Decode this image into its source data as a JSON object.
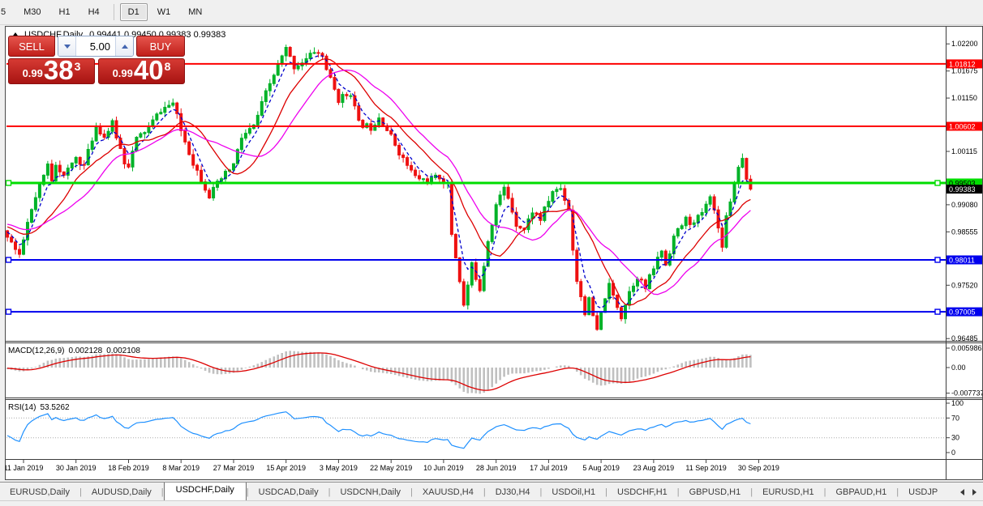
{
  "toolbar": {
    "timeframes": [
      "5",
      "M30",
      "H1",
      "H4",
      "D1",
      "W1",
      "MN"
    ],
    "active_timeframe": "D1"
  },
  "chart": {
    "title": "USDCHF,Daily",
    "ohlc_text": "0.99441 0.99450 0.99383 0.99383"
  },
  "trade_panel": {
    "sell_label": "SELL",
    "buy_label": "BUY",
    "volume": "5.00",
    "sell_quote": {
      "prefix": "0.99",
      "big": "38",
      "sup": "3"
    },
    "buy_quote": {
      "prefix": "0.99",
      "big": "40",
      "sup": "8"
    }
  },
  "indicators": {
    "macd": {
      "label": "MACD(12,26,9)",
      "main_value": "0.002128",
      "signal_value": "0.002108",
      "axis_labels": [
        "0.005986",
        "0.00",
        "-0.007737"
      ]
    },
    "rsi": {
      "label": "RSI(14)",
      "value": "53.5262",
      "axis_labels": [
        "100",
        "70",
        "30",
        "0"
      ]
    }
  },
  "price_axis": {
    "ticks": [
      "1.02200",
      "1.01675",
      "1.01150",
      "1.00115",
      "0.99080",
      "0.98555",
      "0.97520",
      "0.96485"
    ],
    "badges": [
      {
        "label": "1.01812",
        "bg": "#fe0000",
        "fg": "#ffffff"
      },
      {
        "label": "1.00602",
        "bg": "#fe0000",
        "fg": "#ffffff"
      },
      {
        "label": "0.99503",
        "bg": "#00dd00",
        "fg": "#000000"
      },
      {
        "label": "0.99383",
        "bg": "#000000",
        "fg": "#ffffff"
      },
      {
        "label": "0.98011",
        "bg": "#0000ee",
        "fg": "#ffffff"
      },
      {
        "label": "0.97005",
        "bg": "#0000ee",
        "fg": "#ffffff"
      }
    ]
  },
  "time_axis": {
    "labels": [
      "11 Jan 2019",
      "30 Jan 2019",
      "18 Feb 2019",
      "8 Mar 2019",
      "27 Mar 2019",
      "15 Apr 2019",
      "3 May 2019",
      "22 May 2019",
      "10 Jun 2019",
      "28 Jun 2019",
      "17 Jul 2019",
      "5 Aug 2019",
      "23 Aug 2019",
      "11 Sep 2019",
      "30 Sep 2019"
    ]
  },
  "tabs": {
    "items": [
      "EURUSD,Daily",
      "AUDUSD,Daily",
      "USDCHF,Daily",
      "USDCAD,Daily",
      "USDCNH,Daily",
      "XAUUSD,H4",
      "DJ30,H4",
      "USDOil,H1",
      "USDCHF,H1",
      "GBPUSD,H1",
      "EURUSD,H1",
      "GBPAUD,H1",
      "USDJP"
    ],
    "active": "USDCHF,Daily"
  },
  "chart_data": {
    "type": "candlestick",
    "symbol": "USDCHF",
    "period": "Daily",
    "current_bar": {
      "open": 0.99441,
      "high": 0.9945,
      "low": 0.99383,
      "close": 0.99383
    },
    "quotes": {
      "sell": 0.99383,
      "buy": 0.99408
    },
    "y_range": [
      0.9646,
      1.0242
    ],
    "x_label_step_days": 13,
    "horizontal_lines": [
      {
        "price": 1.01812,
        "color": "#fe0000",
        "width": 2,
        "handles": false
      },
      {
        "price": 1.00602,
        "color": "#fe0000",
        "width": 2,
        "handles": false
      },
      {
        "price": 0.99503,
        "color": "#00dd00",
        "width": 3,
        "handles": true
      },
      {
        "price": 0.98011,
        "color": "#0000ee",
        "width": 2,
        "handles": true
      },
      {
        "price": 0.97005,
        "color": "#0000ee",
        "width": 2,
        "handles": true
      }
    ],
    "moving_averages": [
      {
        "name": "fast",
        "period": 5,
        "color": "#0000cc",
        "style": "dashed"
      },
      {
        "name": "mid",
        "period": 13,
        "color": "#dd0000",
        "style": "solid"
      },
      {
        "name": "slow",
        "period": 21,
        "color": "#ee00ee",
        "style": "solid"
      }
    ],
    "macd": {
      "fast": 12,
      "slow": 26,
      "signal": 9,
      "current_main": 0.002128,
      "current_signal": 0.002108,
      "axis_max": 0.005986,
      "axis_min": -0.007737,
      "histogram_color": "#c0c0c0",
      "signal_color": "#dd0000"
    },
    "rsi": {
      "period": 14,
      "current": 53.5262,
      "levels": [
        70,
        30
      ],
      "color": "#1e90ff"
    },
    "bull_color": "#00b228",
    "bear_color": "#ee1111",
    "price_path_daily_close_estimates": [
      [
        -34,
        0.9868
      ],
      [
        -20,
        0.988
      ],
      [
        -10,
        0.9866
      ],
      [
        -4,
        0.985
      ],
      [
        -1,
        0.9806
      ],
      [
        1,
        0.9872
      ],
      [
        3,
        0.992
      ],
      [
        6,
        0.9985
      ],
      [
        7,
        0.9958
      ],
      [
        8,
        0.999
      ],
      [
        10,
        0.9962
      ],
      [
        13,
        1.0
      ],
      [
        15,
        0.9984
      ],
      [
        18,
        1.0062
      ],
      [
        20,
        1.004
      ],
      [
        22,
        1.0065
      ],
      [
        25,
        0.9992
      ],
      [
        26,
        0.9986
      ],
      [
        28,
        1.0035
      ],
      [
        31,
        1.0058
      ],
      [
        34,
        1.0092
      ],
      [
        37,
        1.0105
      ],
      [
        39,
        1.0052
      ],
      [
        42,
        0.999
      ],
      [
        46,
        0.9926
      ],
      [
        49,
        0.9958
      ],
      [
        52,
        0.9986
      ],
      [
        54,
        1.0038
      ],
      [
        57,
        1.006
      ],
      [
        60,
        1.0124
      ],
      [
        63,
        1.0178
      ],
      [
        65,
        1.021
      ],
      [
        67,
        1.0176
      ],
      [
        70,
        1.019
      ],
      [
        72,
        1.0206
      ],
      [
        74,
        1.0196
      ],
      [
        76,
        1.015
      ],
      [
        78,
        1.0112
      ],
      [
        81,
        1.0126
      ],
      [
        83,
        1.0066
      ],
      [
        86,
        1.0058
      ],
      [
        88,
        1.008
      ],
      [
        91,
        1.004
      ],
      [
        94,
        0.9996
      ],
      [
        97,
        0.9962
      ],
      [
        100,
        0.9954
      ],
      [
        103,
        0.9962
      ],
      [
        105,
        0.9946
      ],
      [
        106,
        0.9852
      ],
      [
        108,
        0.9762
      ],
      [
        109,
        0.9712
      ],
      [
        110,
        0.9752
      ],
      [
        111,
        0.979
      ],
      [
        113,
        0.9746
      ],
      [
        115,
        0.984
      ],
      [
        117,
        0.9908
      ],
      [
        119,
        0.994
      ],
      [
        120,
        0.9922
      ],
      [
        122,
        0.9872
      ],
      [
        124,
        0.986
      ],
      [
        126,
        0.9896
      ],
      [
        128,
        0.988
      ],
      [
        131,
        0.9934
      ],
      [
        133,
        0.994
      ],
      [
        135,
        0.99
      ],
      [
        136,
        0.9822
      ],
      [
        137,
        0.9762
      ],
      [
        139,
        0.97
      ],
      [
        140,
        0.9722
      ],
      [
        142,
        0.9662
      ],
      [
        144,
        0.973
      ],
      [
        145,
        0.975
      ],
      [
        147,
        0.9712
      ],
      [
        148,
        0.9692
      ],
      [
        150,
        0.974
      ],
      [
        152,
        0.977
      ],
      [
        154,
        0.9746
      ],
      [
        156,
        0.9786
      ],
      [
        158,
        0.982
      ],
      [
        159,
        0.9792
      ],
      [
        161,
        0.9846
      ],
      [
        164,
        0.988
      ],
      [
        166,
        0.987
      ],
      [
        169,
        0.9906
      ],
      [
        170,
        0.993
      ],
      [
        172,
        0.9862
      ],
      [
        173,
        0.9832
      ],
      [
        174,
        0.9886
      ],
      [
        176,
        0.995
      ],
      [
        177,
        0.9986
      ],
      [
        178,
        0.9996
      ],
      [
        179,
        0.9962
      ],
      [
        180,
        0.9938
      ]
    ]
  }
}
